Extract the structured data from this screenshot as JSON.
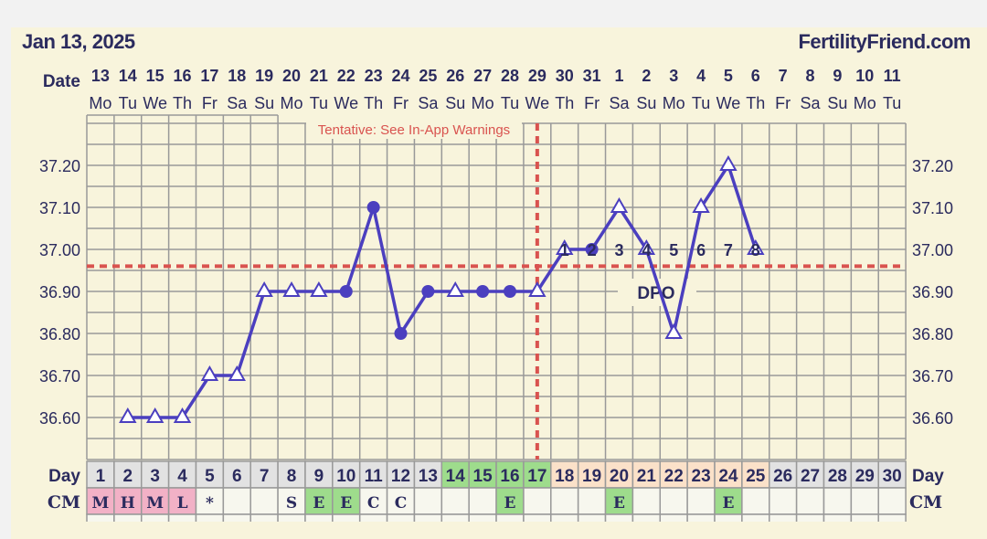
{
  "header": {
    "date": "Jan 13, 2025",
    "site": "FertilityFriend.com"
  },
  "labels": {
    "date_row": "Date",
    "day_row": "Day",
    "cm_row": "CM",
    "warning": "Tentative: See In-App Warnings",
    "dpo": "DPO"
  },
  "colors": {
    "line": "#4b3fbf",
    "coverline": "#d9534f",
    "text": "#2b2b5e",
    "grid": "#999999",
    "background": "#f8f4dc",
    "day_grey": "#e2e2e2",
    "day_green": "#9edc8c",
    "day_peach": "#fbe1c9",
    "cm_pink": "#f2b1c6",
    "cm_green": "#9edc8c"
  },
  "dates": [
    "13",
    "14",
    "15",
    "16",
    "17",
    "18",
    "19",
    "20",
    "21",
    "22",
    "23",
    "24",
    "25",
    "26",
    "27",
    "28",
    "29",
    "30",
    "31",
    "1",
    "2",
    "3",
    "4",
    "5",
    "6",
    "7",
    "8",
    "9",
    "10",
    "11"
  ],
  "weekdays": [
    "Mo",
    "Tu",
    "We",
    "Th",
    "Fr",
    "Sa",
    "Su",
    "Mo",
    "Tu",
    "We",
    "Th",
    "Fr",
    "Sa",
    "Su",
    "Mo",
    "Tu",
    "We",
    "Th",
    "Fr",
    "Sa",
    "Su",
    "Mo",
    "Tu",
    "We",
    "Th",
    "Fr",
    "Sa",
    "Su",
    "Mo",
    "Tu"
  ],
  "chart_data": {
    "type": "line",
    "ylim": [
      36.5,
      37.3
    ],
    "y_ticks": [
      "37.20",
      "37.10",
      "37.00",
      "36.90",
      "36.80",
      "36.70",
      "36.60"
    ],
    "coverline": 36.96,
    "ovulation_day": 17,
    "days": [
      1,
      2,
      3,
      4,
      5,
      6,
      7,
      8,
      9,
      10,
      11,
      12,
      13,
      14,
      15,
      16,
      17,
      18,
      19,
      20,
      21,
      22,
      23,
      24,
      25,
      26,
      27,
      28,
      29,
      30
    ],
    "points": [
      {
        "day": 2,
        "temp": 36.6,
        "marker": "triangle"
      },
      {
        "day": 3,
        "temp": 36.6,
        "marker": "triangle"
      },
      {
        "day": 4,
        "temp": 36.6,
        "marker": "triangle"
      },
      {
        "day": 5,
        "temp": 36.7,
        "marker": "triangle"
      },
      {
        "day": 6,
        "temp": 36.7,
        "marker": "triangle"
      },
      {
        "day": 7,
        "temp": 36.9,
        "marker": "triangle"
      },
      {
        "day": 8,
        "temp": 36.9,
        "marker": "triangle"
      },
      {
        "day": 9,
        "temp": 36.9,
        "marker": "triangle"
      },
      {
        "day": 10,
        "temp": 36.9,
        "marker": "circle"
      },
      {
        "day": 11,
        "temp": 37.1,
        "marker": "circle"
      },
      {
        "day": 12,
        "temp": 36.8,
        "marker": "circle"
      },
      {
        "day": 13,
        "temp": 36.9,
        "marker": "circle"
      },
      {
        "day": 14,
        "temp": 36.9,
        "marker": "triangle"
      },
      {
        "day": 15,
        "temp": 36.9,
        "marker": "circle"
      },
      {
        "day": 16,
        "temp": 36.9,
        "marker": "circle"
      },
      {
        "day": 17,
        "temp": 36.9,
        "marker": "triangle"
      },
      {
        "day": 18,
        "temp": 37.0,
        "marker": "triangle"
      },
      {
        "day": 19,
        "temp": 37.0,
        "marker": "circle"
      },
      {
        "day": 20,
        "temp": 37.1,
        "marker": "triangle"
      },
      {
        "day": 21,
        "temp": 37.0,
        "marker": "triangle"
      },
      {
        "day": 22,
        "temp": 36.8,
        "marker": "triangle"
      },
      {
        "day": 23,
        "temp": 37.1,
        "marker": "triangle"
      },
      {
        "day": 24,
        "temp": 37.2,
        "marker": "triangle"
      },
      {
        "day": 25,
        "temp": 37.0,
        "marker": "triangle"
      }
    ],
    "dpo_labels": [
      "1",
      "2",
      "3",
      "4",
      "5",
      "6",
      "7",
      "8"
    ],
    "day_status": [
      "grey",
      "grey",
      "grey",
      "grey",
      "grey",
      "grey",
      "grey",
      "grey",
      "grey",
      "grey",
      "grey",
      "grey",
      "grey",
      "green",
      "green",
      "green",
      "green",
      "peach",
      "peach",
      "peach",
      "peach",
      "peach",
      "peach",
      "peach",
      "peach",
      "grey",
      "grey",
      "grey",
      "grey",
      "grey"
    ],
    "cm": [
      "M",
      "H",
      "M",
      "L",
      "*",
      "",
      "",
      "S",
      "E",
      "E",
      "C",
      "C",
      "",
      "",
      "",
      "E",
      "",
      "",
      "",
      "E",
      "",
      "",
      "",
      "E",
      "",
      "",
      "",
      "",
      "",
      ""
    ],
    "cm_status": [
      "pink",
      "pink",
      "pink",
      "pink",
      "",
      "",
      "",
      "",
      "green",
      "green",
      "",
      "",
      "",
      "",
      "",
      "green",
      "",
      "",
      "",
      "green",
      "",
      "",
      "",
      "green",
      "",
      "",
      "",
      "",
      "",
      ""
    ]
  }
}
